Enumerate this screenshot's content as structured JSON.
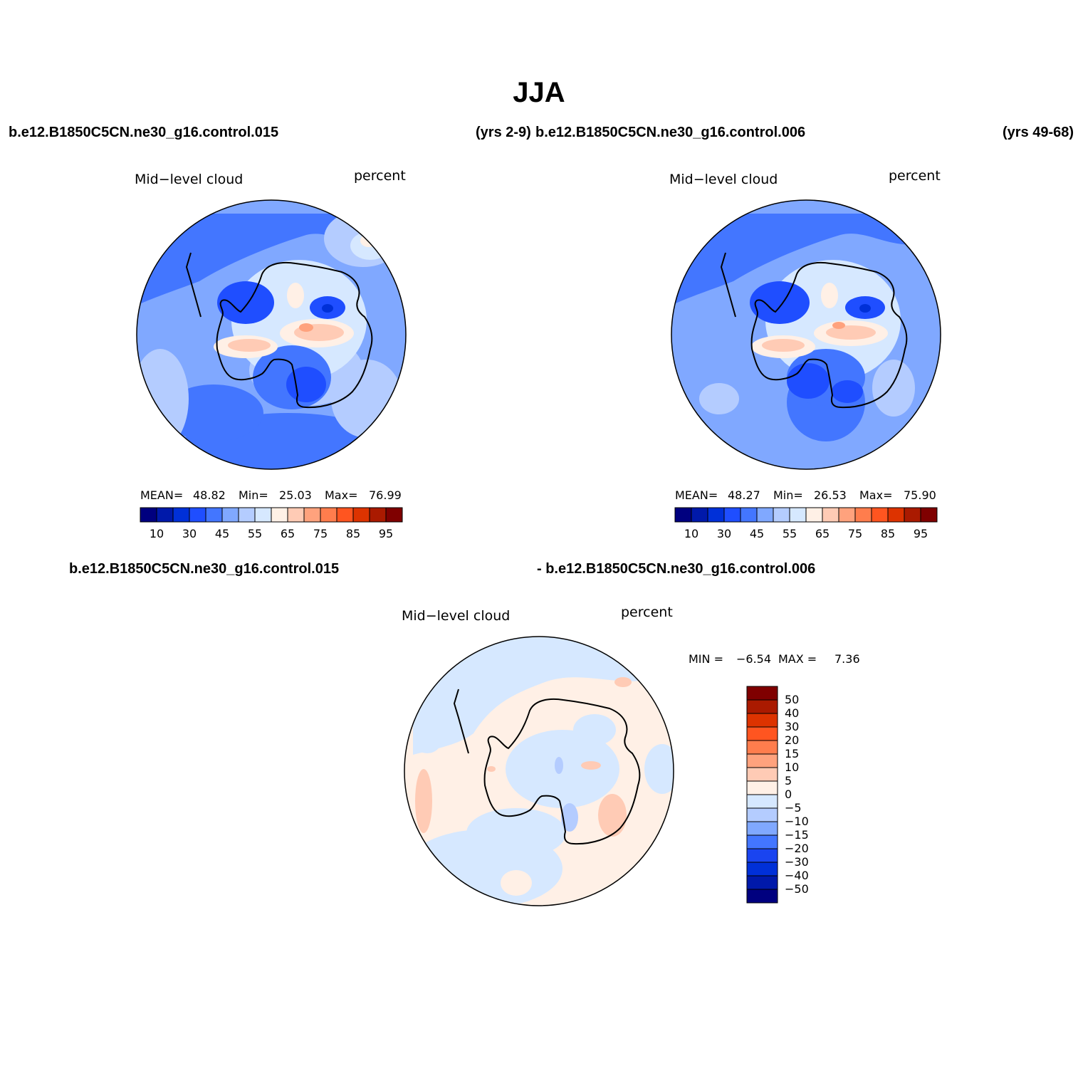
{
  "title": "JJA",
  "case_labels": {
    "top_left": "b.e12.B1850C5CN.ne30_g16.control.015",
    "top_left_years": "(yrs 2-9)",
    "top_right": "b.e12.B1850C5CN.ne30_g16.control.006",
    "top_right_years": "(yrs 49-68)",
    "bottom_left": "b.e12.B1850C5CN.ne30_g16.control.015",
    "bottom_right": "- b.e12.B1850C5CN.ne30_g16.control.006"
  },
  "panels": [
    {
      "variable": "Mid−level cloud",
      "units": "percent",
      "mean_label": "MEAN=",
      "mean": "48.82",
      "min_label": "Min=",
      "min": "25.03",
      "max_label": "Max=",
      "max": "76.99"
    },
    {
      "variable": "Mid−level cloud",
      "units": "percent",
      "mean_label": "MEAN=",
      "mean": "48.27",
      "min_label": "Min=",
      "min": "26.53",
      "max_label": "Max=",
      "max": "75.90"
    },
    {
      "variable": "Mid−level cloud",
      "units": "percent",
      "min_label": "MIN =",
      "min": "−6.54",
      "max_label": "MAX =",
      "max": "7.36"
    }
  ],
  "chart_data": [
    {
      "type": "heatmap",
      "projection": "south polar stereographic",
      "title": "Mid−level cloud",
      "units": "percent",
      "colorbar": {
        "orientation": "horizontal",
        "levels": [
          10,
          20,
          30,
          40,
          45,
          50,
          55,
          60,
          65,
          70,
          75,
          80,
          85,
          90,
          95
        ],
        "tick_labels": [
          "10",
          "30",
          "45",
          "55",
          "65",
          "75",
          "85",
          "95"
        ],
        "colors": [
          "#00007f",
          "#0019aa",
          "#0030d8",
          "#1f4eff",
          "#4376ff",
          "#80a8ff",
          "#b4ccff",
          "#d6e8ff",
          "#fff0e6",
          "#ffcbb5",
          "#ffa27d",
          "#ff7d4d",
          "#ff5520",
          "#dd3300",
          "#aa1a00",
          "#7f0000"
        ]
      },
      "stats": {
        "mean": 48.82,
        "min": 25.03,
        "max": 76.99
      }
    },
    {
      "type": "heatmap",
      "projection": "south polar stereographic",
      "title": "Mid−level cloud",
      "units": "percent",
      "colorbar": {
        "orientation": "horizontal",
        "levels": [
          10,
          20,
          30,
          40,
          45,
          50,
          55,
          60,
          65,
          70,
          75,
          80,
          85,
          90,
          95
        ],
        "tick_labels": [
          "10",
          "30",
          "45",
          "55",
          "65",
          "75",
          "85",
          "95"
        ],
        "colors": [
          "#00007f",
          "#0019aa",
          "#0030d8",
          "#1f4eff",
          "#4376ff",
          "#80a8ff",
          "#b4ccff",
          "#d6e8ff",
          "#fff0e6",
          "#ffcbb5",
          "#ffa27d",
          "#ff7d4d",
          "#ff5520",
          "#dd3300",
          "#aa1a00",
          "#7f0000"
        ]
      },
      "stats": {
        "mean": 48.27,
        "min": 26.53,
        "max": 75.9
      }
    },
    {
      "type": "heatmap",
      "projection": "south polar stereographic",
      "title": "Mid−level cloud",
      "units": "percent",
      "colorbar": {
        "orientation": "vertical",
        "levels": [
          -50,
          -40,
          -30,
          -20,
          -15,
          -10,
          -5,
          0,
          5,
          10,
          15,
          20,
          30,
          40,
          50
        ],
        "tick_labels": [
          "−50",
          "−40",
          "−30",
          "−20",
          "−15",
          "−10",
          "−5",
          "0",
          "5",
          "10",
          "15",
          "20",
          "30",
          "40",
          "50"
        ],
        "colors": [
          "#00007f",
          "#0019aa",
          "#0030d8",
          "#1a44f0",
          "#4376ff",
          "#80a8ff",
          "#b4ccff",
          "#d6e8ff",
          "#fff0e6",
          "#ffcbb5",
          "#ffa27d",
          "#ff7d4d",
          "#ff5520",
          "#dd3300",
          "#aa1a00",
          "#7f0000"
        ]
      },
      "stats": {
        "min": -6.54,
        "max": 7.36
      }
    }
  ]
}
